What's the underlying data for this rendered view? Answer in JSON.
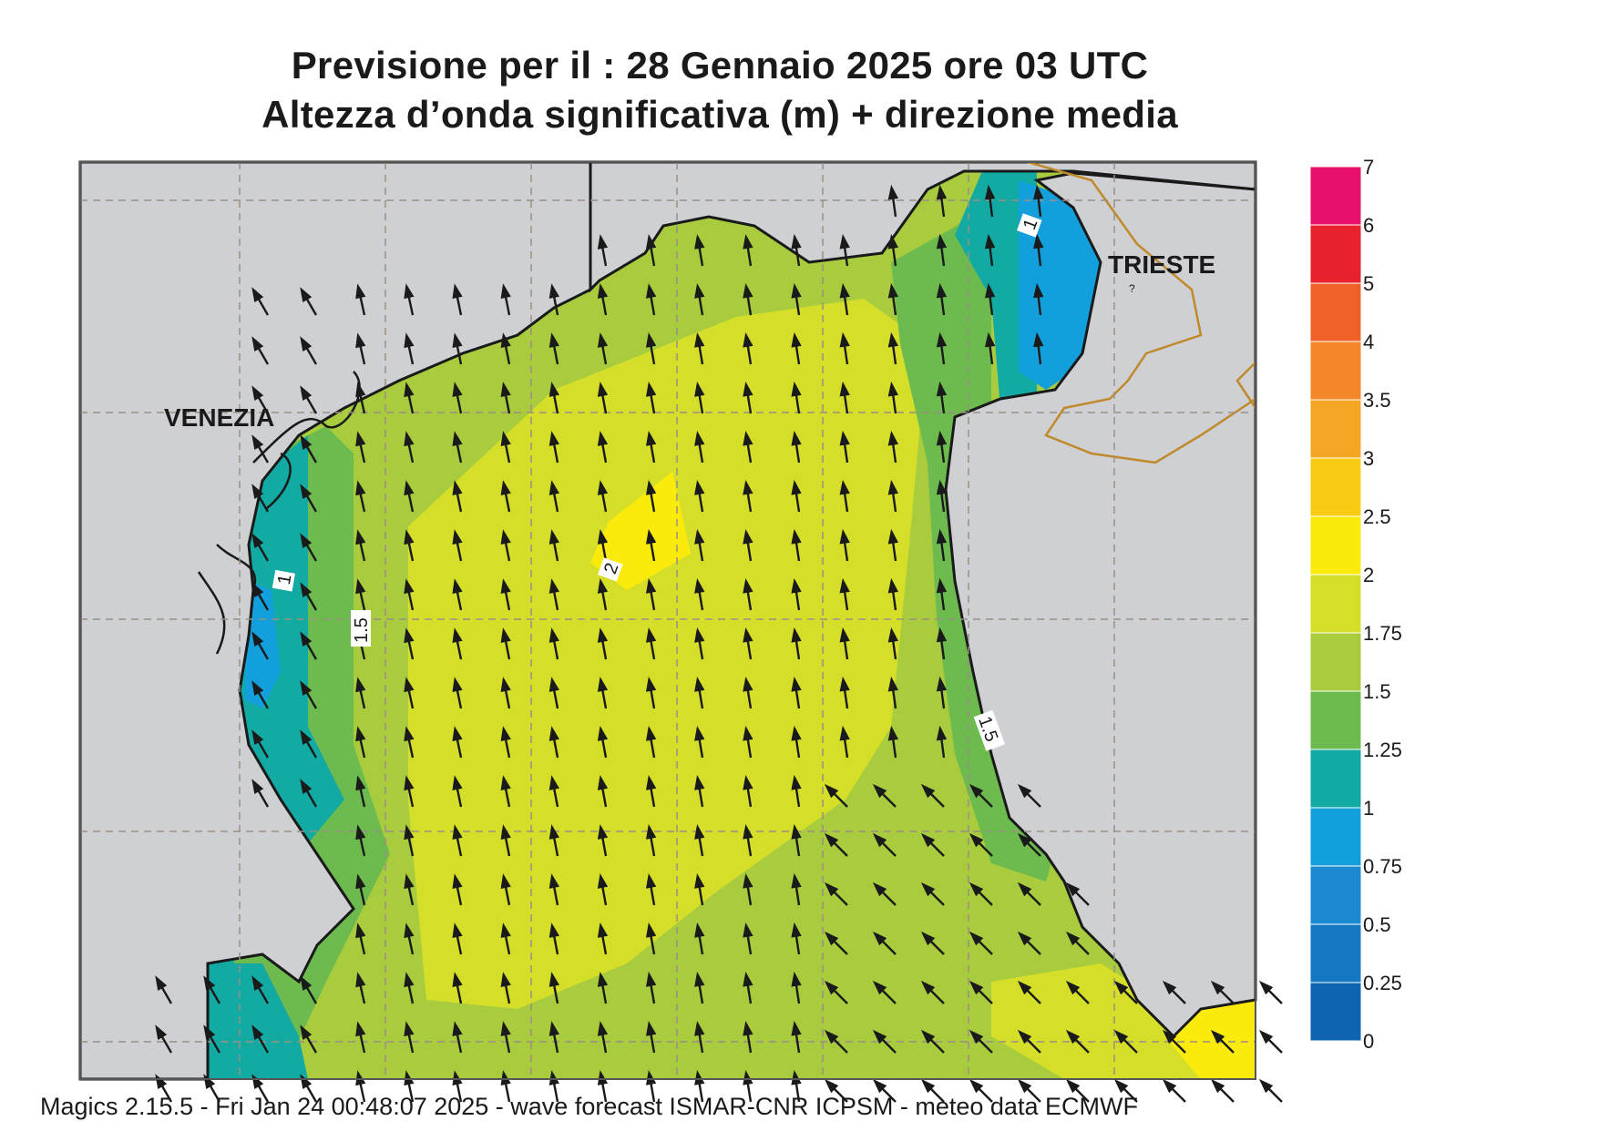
{
  "header": {
    "title_line1": "Previsione per il  :  28  Gennaio  2025   ore 03 UTC",
    "title_line2": "Altezza d’onda significativa (m) + direzione media"
  },
  "map": {
    "places": [
      "VENEZIA",
      "TRIESTE"
    ],
    "contour_labels": [
      "1",
      "1",
      "1.5",
      "2",
      "1.5"
    ],
    "colors": {
      "land": "#cfd0d3",
      "coast": "#1a1a1a",
      "border": "#c08a2a",
      "grid": "#9a8f84"
    }
  },
  "colorbar": {
    "labels": [
      "7",
      "6",
      "5",
      "4",
      "3.5",
      "3",
      "2.5",
      "2",
      "1.75",
      "1.5",
      "1.25",
      "1",
      "0.75",
      "0.5",
      "0.25",
      "0"
    ],
    "colors": [
      "#e8106a",
      "#e8222c",
      "#f0612a",
      "#f4872a",
      "#f5a623",
      "#f8cc14",
      "#fbeb0c",
      "#d5df2a",
      "#a8cc3e",
      "#6dbb4e",
      "#13aaa3",
      "#139fdc",
      "#1b8ad2",
      "#1578c0",
      "#0f64b0"
    ]
  },
  "footer": {
    "text": "Magics 2.15.5 - Fri Jan 24 00:48:07 2025 - wave forecast  ISMAR-CNR  ICPSM - meteo data    ECMWF"
  }
}
